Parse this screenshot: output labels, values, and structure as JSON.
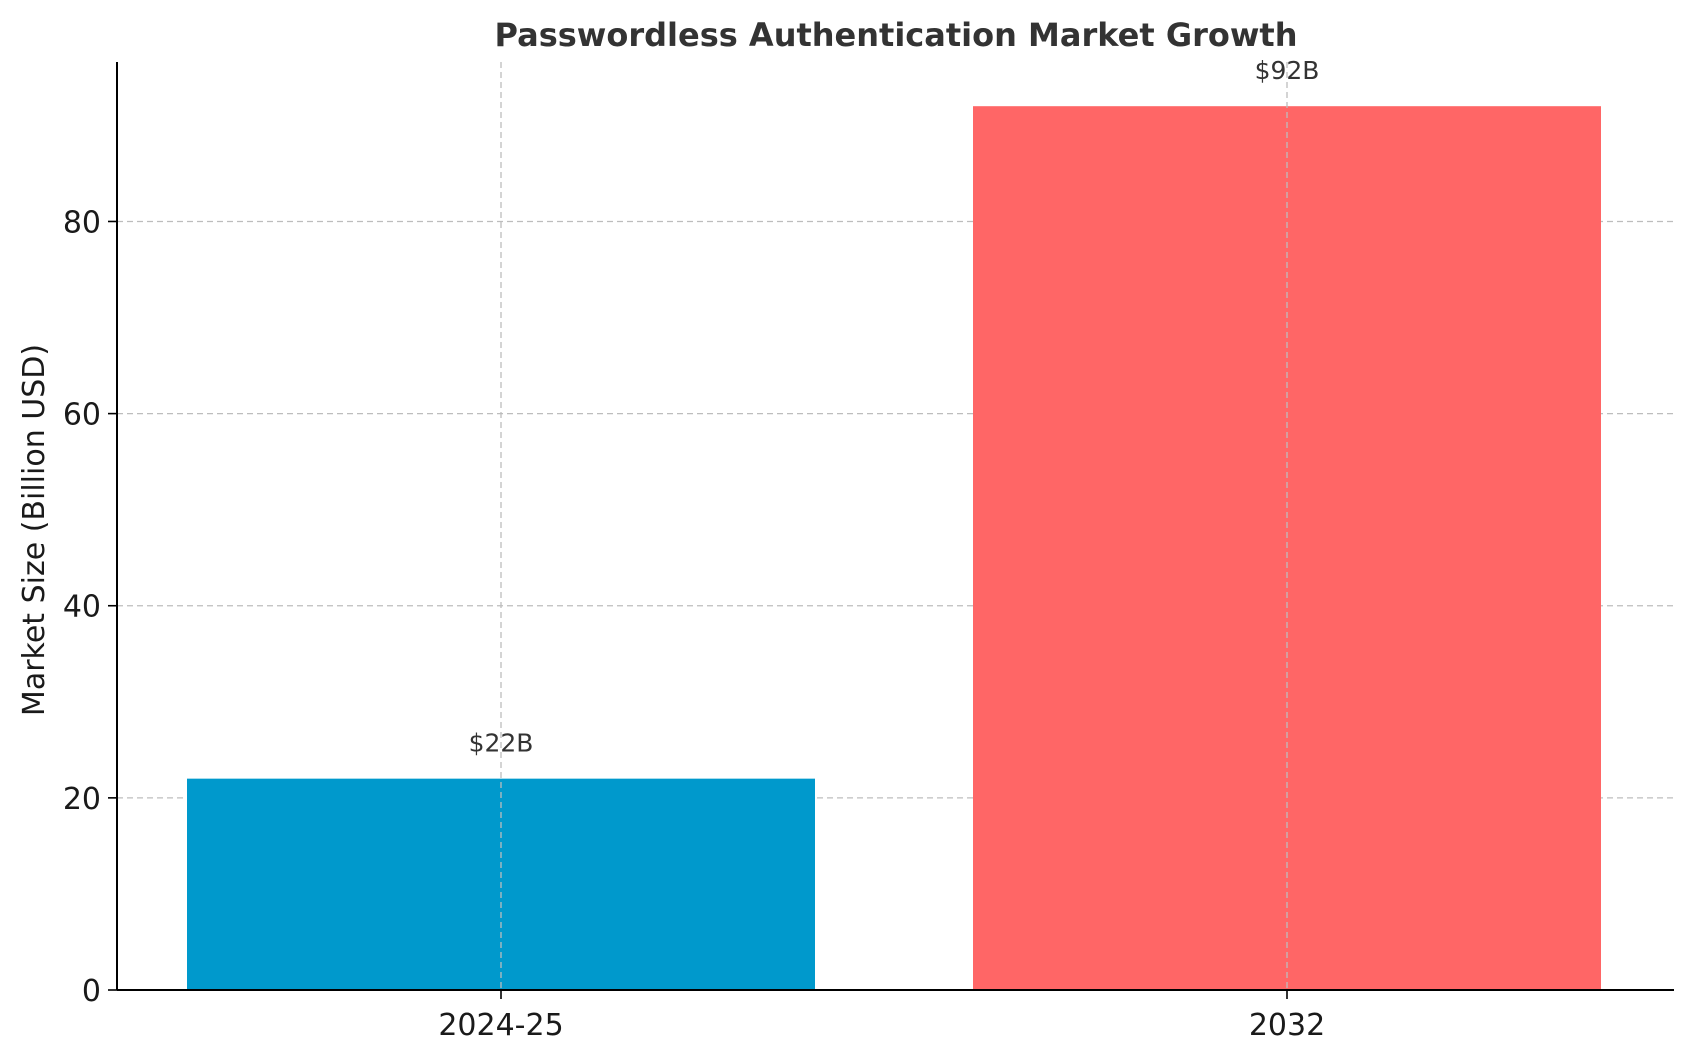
{
  "chart_data": {
    "type": "bar",
    "title": "Passwordless Authentication Market Growth",
    "xlabel": "",
    "ylabel": "Market Size (Billion USD)",
    "categories": [
      "2024-25",
      "2032"
    ],
    "values": [
      22,
      92
    ],
    "data_labels": [
      "$22B",
      "$92B"
    ],
    "colors": [
      "#0099cc",
      "#ff6666"
    ],
    "ylim": [
      0,
      96.6
    ],
    "yticks": [
      0,
      20,
      40,
      60,
      80
    ],
    "grid": true,
    "legend": "none"
  }
}
